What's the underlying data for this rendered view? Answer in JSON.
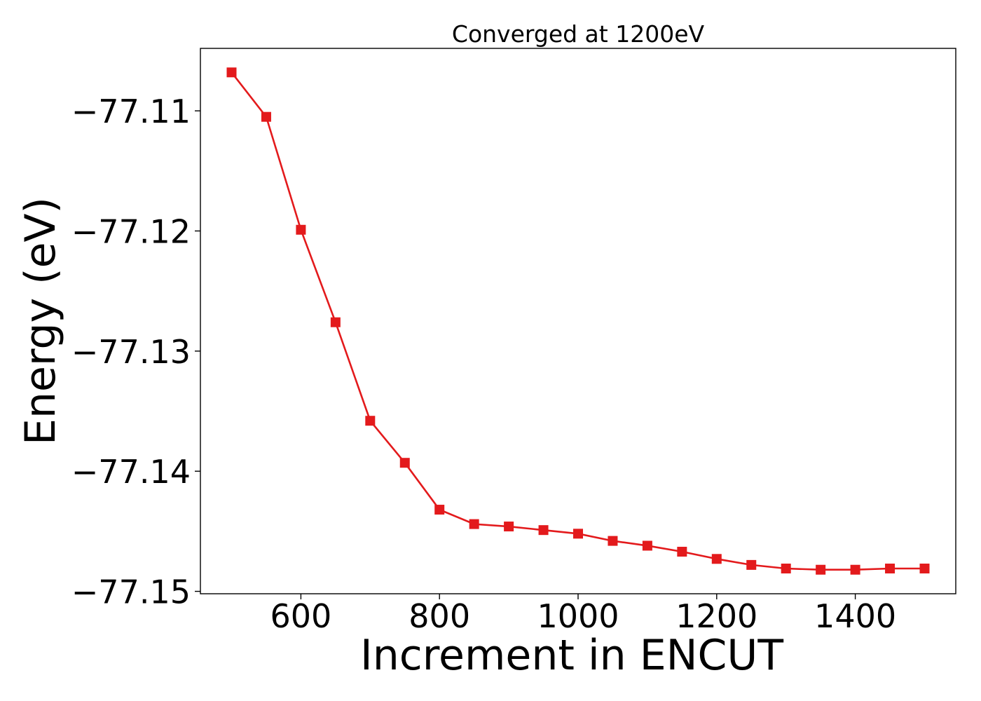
{
  "chart_data": {
    "type": "line",
    "title": "Converged at 1200eV",
    "xlabel": "Increment in ENCUT",
    "ylabel": "Energy (eV)",
    "xlim": [
      455,
      1545
    ],
    "ylim": [
      -77.1502,
      -77.1048
    ],
    "xticks": [
      600,
      800,
      1000,
      1200,
      1400
    ],
    "yticks": [
      -77.11,
      -77.12,
      -77.13,
      -77.14,
      -77.15
    ],
    "xtick_labels": [
      "600",
      "800",
      "1000",
      "1200",
      "1400"
    ],
    "ytick_labels": [
      "−77.11",
      "−77.12",
      "−77.13",
      "−77.14",
      "−77.15"
    ],
    "grid": false,
    "series": [
      {
        "color": "#e31a1c",
        "marker": "square",
        "x": [
          500,
          550,
          600,
          650,
          700,
          750,
          800,
          850,
          900,
          950,
          1000,
          1050,
          1100,
          1150,
          1200,
          1250,
          1300,
          1350,
          1400,
          1450,
          1500
        ],
        "y": [
          -77.1068,
          -77.1105,
          -77.1199,
          -77.1276,
          -77.1358,
          -77.1393,
          -77.1432,
          -77.1444,
          -77.1446,
          -77.1449,
          -77.1452,
          -77.1458,
          -77.1462,
          -77.1467,
          -77.1473,
          -77.1478,
          -77.1481,
          -77.1482,
          -77.1482,
          -77.1481,
          -77.1481
        ]
      }
    ]
  }
}
